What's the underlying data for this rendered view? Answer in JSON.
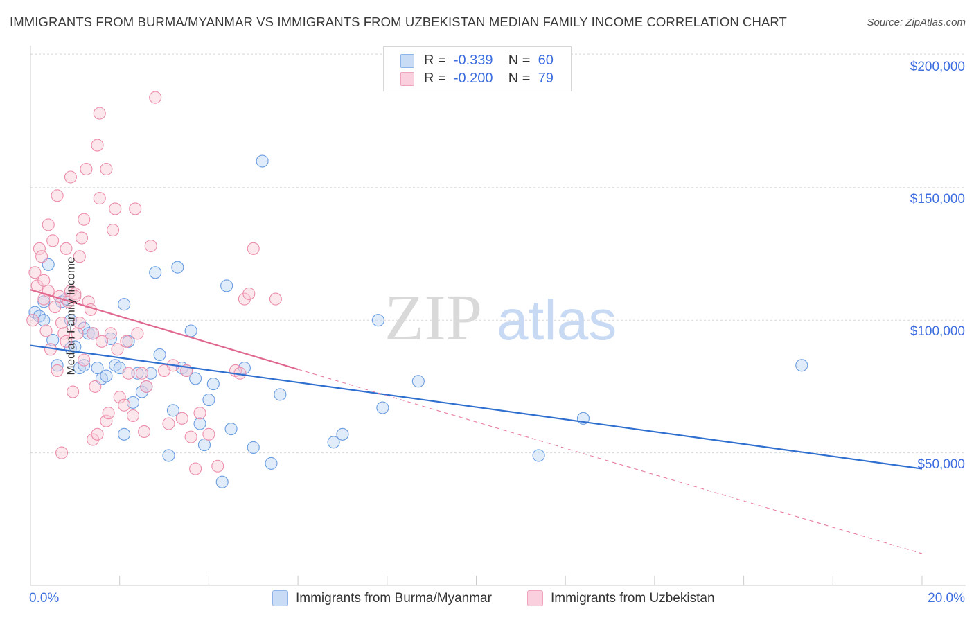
{
  "title": "IMMIGRANTS FROM BURMA/MYANMAR VS IMMIGRANTS FROM UZBEKISTAN MEDIAN FAMILY INCOME CORRELATION CHART",
  "source": "Source: ZipAtlas.com",
  "watermark": {
    "zip": "ZIP",
    "atlas": "atlas"
  },
  "legend": {
    "r_label": "R =",
    "n_label": "N =",
    "rows": [
      {
        "r": "-0.339",
        "n": "60",
        "color": "#a9c8ee"
      },
      {
        "r": "-0.200",
        "n": "79",
        "color": "#f6b8cc"
      }
    ]
  },
  "bottom_legend": [
    "Immigrants from Burma/Myanmar",
    "Immigrants from Uzbekistan"
  ],
  "axes": {
    "x_min_label": "0.0%",
    "x_max_label": "20.0%",
    "ylabel": "Median Family Income",
    "y_ticks": [
      "$200,000",
      "$150,000",
      "$100,000",
      "$50,000"
    ]
  },
  "chart_data": {
    "type": "scatter",
    "title": "IMMIGRANTS FROM BURMA/MYANMAR VS IMMIGRANTS FROM UZBEKISTAN MEDIAN FAMILY INCOME CORRELATION CHART",
    "xlabel": "",
    "ylabel": "Median Family Income",
    "xlim": [
      0,
      20
    ],
    "ylim": [
      0,
      210000
    ],
    "y_ticks": [
      50000,
      100000,
      150000,
      200000
    ],
    "series": [
      {
        "name": "Immigrants from Burma/Myanmar",
        "color": "#6a9de0",
        "fill": "#bcd4f3",
        "trend": {
          "x0": 0,
          "y0": 90500,
          "x1": 20,
          "y1": 44000,
          "style": "solid"
        },
        "points": [
          [
            0.1,
            103000
          ],
          [
            0.2,
            101500
          ],
          [
            0.3,
            100000
          ],
          [
            0.3,
            107000
          ],
          [
            0.4,
            121000
          ],
          [
            0.5,
            92500
          ],
          [
            0.6,
            83000
          ],
          [
            0.7,
            107000
          ],
          [
            0.8,
            108000
          ],
          [
            0.9,
            100000
          ],
          [
            0.9,
            89500
          ],
          [
            1.0,
            90000
          ],
          [
            1.1,
            82000
          ],
          [
            1.2,
            97000
          ],
          [
            1.2,
            83000
          ],
          [
            1.3,
            95000
          ],
          [
            1.4,
            95000
          ],
          [
            1.5,
            82000
          ],
          [
            1.6,
            78000
          ],
          [
            1.7,
            79000
          ],
          [
            1.8,
            93000
          ],
          [
            1.9,
            83000
          ],
          [
            2.0,
            82000
          ],
          [
            2.1,
            106000
          ],
          [
            2.1,
            57000
          ],
          [
            2.2,
            92000
          ],
          [
            2.3,
            69000
          ],
          [
            2.4,
            80000
          ],
          [
            2.5,
            73000
          ],
          [
            2.6,
            75000
          ],
          [
            2.7,
            80000
          ],
          [
            2.8,
            118000
          ],
          [
            2.9,
            87000
          ],
          [
            3.1,
            49000
          ],
          [
            3.2,
            66000
          ],
          [
            3.3,
            120000
          ],
          [
            3.4,
            82000
          ],
          [
            3.5,
            81000
          ],
          [
            3.6,
            96000
          ],
          [
            3.7,
            78000
          ],
          [
            3.8,
            61000
          ],
          [
            3.9,
            53000
          ],
          [
            4.0,
            70000
          ],
          [
            4.1,
            76000
          ],
          [
            4.3,
            39000
          ],
          [
            4.4,
            113000
          ],
          [
            4.5,
            59000
          ],
          [
            4.8,
            82000
          ],
          [
            5.0,
            52000
          ],
          [
            5.2,
            160000
          ],
          [
            5.4,
            46000
          ],
          [
            5.6,
            72000
          ],
          [
            6.8,
            54000
          ],
          [
            7.0,
            57000
          ],
          [
            7.8,
            100000
          ],
          [
            7.9,
            67000
          ],
          [
            8.7,
            77000
          ],
          [
            11.4,
            49000
          ],
          [
            12.4,
            63000
          ],
          [
            17.3,
            83000
          ]
        ]
      },
      {
        "name": "Immigrants from Uzbekistan",
        "color": "#ec8eab",
        "fill": "#f9c9d8",
        "trend": {
          "x0": 0,
          "y0": 111500,
          "x1": 6.0,
          "y1": 81500,
          "style": "solid",
          "extension": {
            "x1": 20,
            "y1": 12000,
            "style": "dashed"
          }
        },
        "points": [
          [
            0.05,
            100000
          ],
          [
            0.1,
            118000
          ],
          [
            0.15,
            113000
          ],
          [
            0.2,
            127000
          ],
          [
            0.25,
            124000
          ],
          [
            0.3,
            115000
          ],
          [
            0.3,
            108000
          ],
          [
            0.35,
            96000
          ],
          [
            0.4,
            111000
          ],
          [
            0.4,
            136000
          ],
          [
            0.45,
            89000
          ],
          [
            0.5,
            130000
          ],
          [
            0.55,
            105000
          ],
          [
            0.6,
            81000
          ],
          [
            0.6,
            147000
          ],
          [
            0.65,
            109000
          ],
          [
            0.7,
            99000
          ],
          [
            0.7,
            50000
          ],
          [
            0.75,
            95000
          ],
          [
            0.8,
            127000
          ],
          [
            0.8,
            92000
          ],
          [
            0.85,
            107000
          ],
          [
            0.9,
            111000
          ],
          [
            0.9,
            154000
          ],
          [
            0.95,
            73000
          ],
          [
            1.0,
            110000
          ],
          [
            1.0,
            109000
          ],
          [
            1.05,
            95000
          ],
          [
            1.1,
            99000
          ],
          [
            1.1,
            124000
          ],
          [
            1.15,
            131000
          ],
          [
            1.2,
            138000
          ],
          [
            1.2,
            85000
          ],
          [
            1.25,
            157000
          ],
          [
            1.3,
            107000
          ],
          [
            1.35,
            104000
          ],
          [
            1.4,
            55000
          ],
          [
            1.4,
            95000
          ],
          [
            1.45,
            75000
          ],
          [
            1.5,
            166000
          ],
          [
            1.5,
            57000
          ],
          [
            1.55,
            146000
          ],
          [
            1.55,
            178000
          ],
          [
            1.6,
            92000
          ],
          [
            1.7,
            157000
          ],
          [
            1.7,
            62000
          ],
          [
            1.75,
            65000
          ],
          [
            1.8,
            95000
          ],
          [
            1.85,
            134000
          ],
          [
            1.9,
            142000
          ],
          [
            1.95,
            89000
          ],
          [
            2.0,
            71000
          ],
          [
            2.1,
            68000
          ],
          [
            2.15,
            92000
          ],
          [
            2.2,
            80000
          ],
          [
            2.3,
            64000
          ],
          [
            2.35,
            142000
          ],
          [
            2.4,
            95000
          ],
          [
            2.5,
            80000
          ],
          [
            2.55,
            58000
          ],
          [
            2.6,
            75000
          ],
          [
            2.7,
            128000
          ],
          [
            2.8,
            184000
          ],
          [
            3.0,
            81000
          ],
          [
            3.1,
            61000
          ],
          [
            3.2,
            83000
          ],
          [
            3.4,
            63000
          ],
          [
            3.5,
            81000
          ],
          [
            3.6,
            56000
          ],
          [
            3.7,
            44000
          ],
          [
            3.8,
            65000
          ],
          [
            4.0,
            57000
          ],
          [
            4.2,
            45000
          ],
          [
            4.6,
            81000
          ],
          [
            4.7,
            80000
          ],
          [
            4.8,
            108000
          ],
          [
            4.9,
            110000
          ],
          [
            5.0,
            127000
          ],
          [
            5.5,
            108000
          ]
        ]
      }
    ]
  }
}
